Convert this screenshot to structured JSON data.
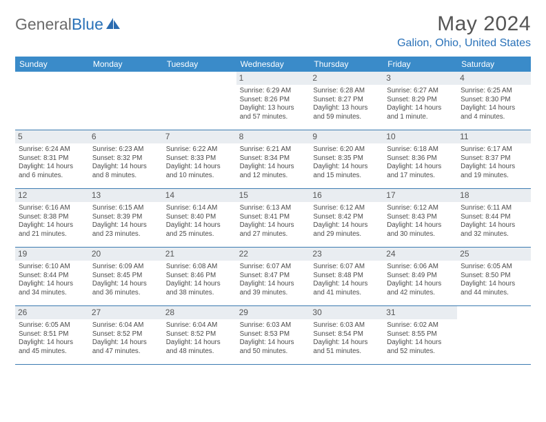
{
  "logo": {
    "text1": "General",
    "text2": "Blue"
  },
  "title": "May 2024",
  "location": "Galion, Ohio, United States",
  "colors": {
    "header_bg": "#3a8bc9",
    "accent": "#2971b8",
    "daynum_bg": "#e9edf1",
    "text": "#4a4a4a",
    "rule": "#3a7ab0"
  },
  "dayNames": [
    "Sunday",
    "Monday",
    "Tuesday",
    "Wednesday",
    "Thursday",
    "Friday",
    "Saturday"
  ],
  "weeks": [
    [
      null,
      null,
      null,
      {
        "n": "1",
        "sr": "6:29 AM",
        "ss": "8:26 PM",
        "d1": "13 hours",
        "d2": "and 57 minutes."
      },
      {
        "n": "2",
        "sr": "6:28 AM",
        "ss": "8:27 PM",
        "d1": "13 hours",
        "d2": "and 59 minutes."
      },
      {
        "n": "3",
        "sr": "6:27 AM",
        "ss": "8:29 PM",
        "d1": "14 hours",
        "d2": "and 1 minute."
      },
      {
        "n": "4",
        "sr": "6:25 AM",
        "ss": "8:30 PM",
        "d1": "14 hours",
        "d2": "and 4 minutes."
      }
    ],
    [
      {
        "n": "5",
        "sr": "6:24 AM",
        "ss": "8:31 PM",
        "d1": "14 hours",
        "d2": "and 6 minutes."
      },
      {
        "n": "6",
        "sr": "6:23 AM",
        "ss": "8:32 PM",
        "d1": "14 hours",
        "d2": "and 8 minutes."
      },
      {
        "n": "7",
        "sr": "6:22 AM",
        "ss": "8:33 PM",
        "d1": "14 hours",
        "d2": "and 10 minutes."
      },
      {
        "n": "8",
        "sr": "6:21 AM",
        "ss": "8:34 PM",
        "d1": "14 hours",
        "d2": "and 12 minutes."
      },
      {
        "n": "9",
        "sr": "6:20 AM",
        "ss": "8:35 PM",
        "d1": "14 hours",
        "d2": "and 15 minutes."
      },
      {
        "n": "10",
        "sr": "6:18 AM",
        "ss": "8:36 PM",
        "d1": "14 hours",
        "d2": "and 17 minutes."
      },
      {
        "n": "11",
        "sr": "6:17 AM",
        "ss": "8:37 PM",
        "d1": "14 hours",
        "d2": "and 19 minutes."
      }
    ],
    [
      {
        "n": "12",
        "sr": "6:16 AM",
        "ss": "8:38 PM",
        "d1": "14 hours",
        "d2": "and 21 minutes."
      },
      {
        "n": "13",
        "sr": "6:15 AM",
        "ss": "8:39 PM",
        "d1": "14 hours",
        "d2": "and 23 minutes."
      },
      {
        "n": "14",
        "sr": "6:14 AM",
        "ss": "8:40 PM",
        "d1": "14 hours",
        "d2": "and 25 minutes."
      },
      {
        "n": "15",
        "sr": "6:13 AM",
        "ss": "8:41 PM",
        "d1": "14 hours",
        "d2": "and 27 minutes."
      },
      {
        "n": "16",
        "sr": "6:12 AM",
        "ss": "8:42 PM",
        "d1": "14 hours",
        "d2": "and 29 minutes."
      },
      {
        "n": "17",
        "sr": "6:12 AM",
        "ss": "8:43 PM",
        "d1": "14 hours",
        "d2": "and 30 minutes."
      },
      {
        "n": "18",
        "sr": "6:11 AM",
        "ss": "8:44 PM",
        "d1": "14 hours",
        "d2": "and 32 minutes."
      }
    ],
    [
      {
        "n": "19",
        "sr": "6:10 AM",
        "ss": "8:44 PM",
        "d1": "14 hours",
        "d2": "and 34 minutes."
      },
      {
        "n": "20",
        "sr": "6:09 AM",
        "ss": "8:45 PM",
        "d1": "14 hours",
        "d2": "and 36 minutes."
      },
      {
        "n": "21",
        "sr": "6:08 AM",
        "ss": "8:46 PM",
        "d1": "14 hours",
        "d2": "and 38 minutes."
      },
      {
        "n": "22",
        "sr": "6:07 AM",
        "ss": "8:47 PM",
        "d1": "14 hours",
        "d2": "and 39 minutes."
      },
      {
        "n": "23",
        "sr": "6:07 AM",
        "ss": "8:48 PM",
        "d1": "14 hours",
        "d2": "and 41 minutes."
      },
      {
        "n": "24",
        "sr": "6:06 AM",
        "ss": "8:49 PM",
        "d1": "14 hours",
        "d2": "and 42 minutes."
      },
      {
        "n": "25",
        "sr": "6:05 AM",
        "ss": "8:50 PM",
        "d1": "14 hours",
        "d2": "and 44 minutes."
      }
    ],
    [
      {
        "n": "26",
        "sr": "6:05 AM",
        "ss": "8:51 PM",
        "d1": "14 hours",
        "d2": "and 45 minutes."
      },
      {
        "n": "27",
        "sr": "6:04 AM",
        "ss": "8:52 PM",
        "d1": "14 hours",
        "d2": "and 47 minutes."
      },
      {
        "n": "28",
        "sr": "6:04 AM",
        "ss": "8:52 PM",
        "d1": "14 hours",
        "d2": "and 48 minutes."
      },
      {
        "n": "29",
        "sr": "6:03 AM",
        "ss": "8:53 PM",
        "d1": "14 hours",
        "d2": "and 50 minutes."
      },
      {
        "n": "30",
        "sr": "6:03 AM",
        "ss": "8:54 PM",
        "d1": "14 hours",
        "d2": "and 51 minutes."
      },
      {
        "n": "31",
        "sr": "6:02 AM",
        "ss": "8:55 PM",
        "d1": "14 hours",
        "d2": "and 52 minutes."
      },
      null
    ]
  ],
  "labels": {
    "sunrise": "Sunrise: ",
    "sunset": "Sunset: ",
    "daylight": "Daylight: "
  }
}
